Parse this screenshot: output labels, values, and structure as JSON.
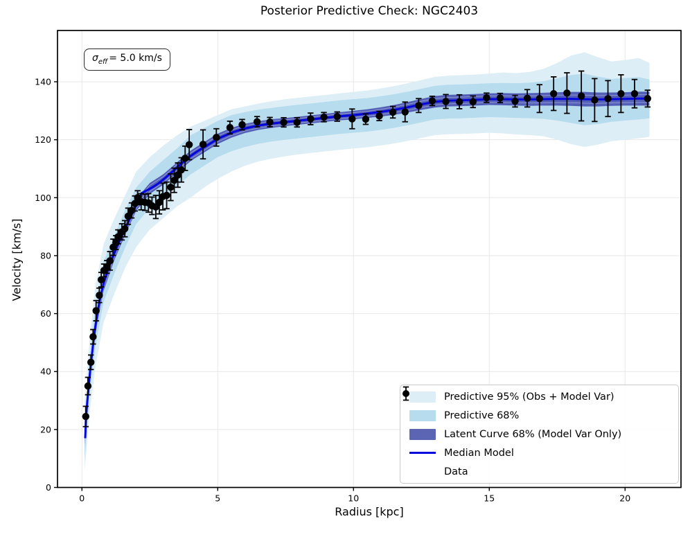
{
  "figure": {
    "title": "Posterior Predictive Check: NGC2403",
    "xlabel": "Radius [kpc]",
    "ylabel": "Velocity [km/s]"
  },
  "annotation": {
    "sigma": "σ",
    "sub": "eff",
    "rest": "= 5.0 km/s"
  },
  "colors": {
    "band95": "#ddeef6",
    "band68": "#b7dcee",
    "latent": "#4a54b2",
    "latent_legend": "#5c64b4",
    "median": "#0404dd",
    "data": "#000000",
    "grid": "#e7e7e7",
    "frame": "#000000",
    "streak": "rgba(205,213,242,0.55)"
  },
  "chart_data": {
    "type": "line",
    "title": "Posterior Predictive Check: NGC2403",
    "xlabel": "Radius [kpc]",
    "ylabel": "Velocity [km/s]",
    "xlim": [
      -0.9,
      22.06
    ],
    "ylim": [
      0,
      157.7
    ],
    "x_ticks": [
      0,
      5,
      10,
      15,
      20
    ],
    "y_ticks": [
      0,
      20,
      40,
      60,
      80,
      100,
      120,
      140
    ],
    "grid": true,
    "legend_position": "lower right",
    "legend": [
      {
        "label": "Predictive 95% (Obs + Model Var)",
        "swatch": "band95"
      },
      {
        "label": "Predictive 68%",
        "swatch": "band68"
      },
      {
        "label": "Latent Curve 68% (Model Var Only)",
        "swatch": "latent_legend"
      },
      {
        "label": "Median Model",
        "swatch": "median"
      },
      {
        "label": "Data",
        "swatch": "data"
      }
    ],
    "bands": {
      "r": [
        0.1,
        0.3,
        0.5,
        0.8,
        1.2,
        1.6,
        2.0,
        2.5,
        3.0,
        3.5,
        4.0,
        4.5,
        5.0,
        5.5,
        6.0,
        6.5,
        7.0,
        7.5,
        8.0,
        8.5,
        9.0,
        9.5,
        10.0,
        10.5,
        11.0,
        11.5,
        12.0,
        12.5,
        13.0,
        13.5,
        14.0,
        14.5,
        15.0,
        15.5,
        16.0,
        16.5,
        17.0,
        17.5,
        18.0,
        18.5,
        19.0,
        19.5,
        20.0,
        20.5,
        20.9
      ],
      "pred95_lo": [
        6,
        27,
        42,
        57,
        67,
        76,
        83,
        89,
        93,
        97,
        100,
        103.5,
        106.5,
        109,
        111,
        112.5,
        113.5,
        114.3,
        115,
        115.5,
        116,
        116.5,
        117,
        117.4,
        118,
        118.7,
        119.6,
        120.6,
        121.6,
        121.9,
        122,
        122.2,
        122.4,
        122.2,
        121.8,
        121.6,
        121.2,
        120,
        118.5,
        117.5,
        118.3,
        119.5,
        120,
        120.5,
        121
      ],
      "pred95_hi": [
        30,
        53,
        70,
        84,
        93,
        101,
        109,
        114,
        118,
        121.5,
        124.5,
        126.5,
        128.5,
        130.5,
        131.5,
        132.5,
        133.3,
        134,
        134.5,
        135,
        135.5,
        136,
        136.5,
        137,
        137.7,
        138.5,
        139.5,
        140.6,
        141.7,
        142.1,
        142.3,
        142.5,
        142.8,
        143.2,
        143,
        143.4,
        144.5,
        146.5,
        149,
        150.2,
        148.5,
        147,
        147.5,
        148.2,
        146.5
      ],
      "pred68_lo": [
        10,
        33,
        49,
        64,
        74,
        83,
        91,
        96.5,
        100,
        104,
        108,
        111,
        114,
        116,
        117.5,
        118.6,
        119.4,
        120,
        120.5,
        121,
        121.5,
        122,
        122.4,
        122.8,
        123.4,
        124.1,
        125,
        126,
        127,
        127.3,
        127.4,
        127.6,
        127.8,
        127.7,
        127.5,
        127.4,
        127.2,
        126.6,
        125.8,
        125,
        125.4,
        126.2,
        126.6,
        127,
        127.4
      ],
      "pred68_hi": [
        24,
        47,
        63,
        78,
        87,
        96,
        103.5,
        109,
        113,
        117,
        121.5,
        124,
        126.5,
        128.5,
        129.5,
        130.4,
        131,
        131.6,
        132.1,
        132.6,
        133.1,
        133.6,
        134,
        134.4,
        135,
        135.7,
        136.6,
        137.6,
        138.6,
        139,
        139.1,
        139.3,
        139.5,
        139.6,
        139.5,
        139.7,
        140.2,
        141.2,
        142.3,
        142.8,
        141.8,
        141,
        141.3,
        141.6,
        140.8
      ],
      "latent_lo": [
        14.8,
        37.4,
        53.4,
        67.9,
        78.6,
        87.3,
        95.5,
        101.3,
        104.5,
        108.6,
        112.6,
        115.6,
        118.5,
        120.7,
        122.3,
        123.4,
        124.1,
        124.7,
        125.2,
        125.7,
        126.2,
        126.7,
        127,
        127.5,
        128,
        128.6,
        129.4,
        130.3,
        131.1,
        131.5,
        131.6,
        131.8,
        132,
        131.9,
        131.8,
        131.7,
        131.8,
        131.8,
        131.7,
        131.5,
        131.5,
        131.7,
        131.8,
        131.8,
        131.8
      ],
      "latent_hi": [
        19.2,
        42.6,
        58.6,
        73.1,
        83.4,
        91.7,
        99.5,
        105.1,
        108.1,
        112.2,
        116.2,
        119.2,
        122.1,
        124.1,
        125.5,
        126.4,
        127.1,
        127.5,
        128,
        128.5,
        129,
        129.5,
        130,
        130.5,
        131.2,
        132,
        133,
        134.1,
        135.1,
        135.5,
        135.6,
        135.8,
        136,
        136.1,
        136,
        136.1,
        136.2,
        136.4,
        136.5,
        136.5,
        136.3,
        136.3,
        136.4,
        136.6,
        136.6
      ]
    },
    "median": {
      "r": [
        0.12,
        0.15,
        0.2,
        0.3,
        0.4,
        0.5,
        0.65,
        0.8,
        1.0,
        1.2,
        1.4,
        1.6,
        1.8,
        2.0,
        2.1,
        2.2,
        2.35,
        2.6,
        2.8,
        3.0,
        3.25,
        3.5,
        3.75,
        4.0,
        4.25,
        4.5,
        5.0,
        5.5,
        6.0,
        6.5,
        7.0,
        7.5,
        8.0,
        8.5,
        9.0,
        9.5,
        10.0,
        10.5,
        11.0,
        11.5,
        12.0,
        12.5,
        13.0,
        13.5,
        14.0,
        14.5,
        15.0,
        15.5,
        16.0,
        16.5,
        17.0,
        17.5,
        18.0,
        18.5,
        19.0,
        19.5,
        20.0,
        20.5,
        20.9
      ],
      "v": [
        17,
        24,
        30,
        40,
        48.5,
        56,
        64.5,
        70.5,
        76.5,
        81,
        85.5,
        89.5,
        93.5,
        97.5,
        99.8,
        101.6,
        102.3,
        103.6,
        104.8,
        106.3,
        108.3,
        110.4,
        112.5,
        114.4,
        116,
        117.4,
        120.3,
        122.4,
        123.9,
        124.9,
        125.6,
        126.1,
        126.6,
        127.1,
        127.6,
        128.1,
        128.5,
        129,
        129.6,
        130.3,
        131.2,
        132.2,
        133.1,
        133.5,
        133.6,
        133.8,
        134,
        134,
        133.9,
        133.9,
        134,
        134.1,
        134.1,
        134,
        133.9,
        134,
        134.1,
        134.2,
        134.2
      ]
    },
    "data": {
      "r": [
        0.14,
        0.22,
        0.33,
        0.41,
        0.52,
        0.64,
        0.71,
        0.81,
        0.92,
        1.03,
        1.15,
        1.25,
        1.33,
        1.47,
        1.58,
        1.7,
        1.83,
        1.95,
        2.05,
        2.18,
        2.32,
        2.45,
        2.58,
        2.72,
        2.85,
        2.98,
        3.12,
        3.27,
        3.4,
        3.53,
        3.66,
        3.8,
        3.95,
        4.46,
        4.95,
        5.45,
        5.9,
        6.45,
        6.92,
        7.43,
        7.92,
        8.42,
        8.91,
        9.4,
        9.95,
        10.45,
        10.95,
        11.45,
        11.9,
        12.4,
        12.9,
        13.4,
        13.9,
        14.4,
        14.9,
        15.4,
        15.95,
        16.4,
        16.85,
        17.37,
        17.86,
        18.39,
        18.88,
        19.37,
        19.85,
        20.35,
        20.83
      ],
      "v": [
        24.5,
        35,
        43.2,
        52,
        61,
        66.3,
        71.7,
        74.9,
        76.1,
        78.2,
        82.9,
        84.5,
        86.5,
        88.2,
        89.3,
        93.6,
        95.6,
        98,
        100,
        98.6,
        98.4,
        98.2,
        97.2,
        96.8,
        98.4,
        100.4,
        100.8,
        103.6,
        106,
        107.8,
        109.6,
        113.6,
        118.3,
        118.4,
        120.8,
        124.2,
        125.2,
        126.2,
        126.1,
        126,
        126,
        127.2,
        127.8,
        128,
        127.2,
        127.1,
        128.2,
        129.5,
        129.6,
        131.8,
        133.4,
        133.2,
        133.1,
        133.1,
        134.5,
        134.4,
        133.3,
        134.3,
        134.2,
        135.9,
        136.1,
        135.1,
        133.7,
        134.2,
        135.9,
        135.9,
        134.2
      ],
      "err": [
        3.5,
        3,
        2.5,
        2.5,
        3.5,
        2.5,
        2.5,
        2.2,
        2.2,
        3.2,
        2.8,
        2.4,
        2.4,
        2.8,
        2.8,
        2.8,
        2.6,
        2.6,
        2.4,
        2.8,
        2.8,
        3.2,
        3,
        4,
        4,
        4.6,
        4.6,
        4.6,
        4.2,
        4.2,
        4.2,
        4.2,
        5.2,
        5,
        3,
        2.2,
        1.8,
        1.8,
        1.6,
        1.6,
        1.6,
        2,
        1.6,
        1.6,
        3.4,
        1.8,
        1.6,
        2,
        3.4,
        2.4,
        1.6,
        2.4,
        2.4,
        2,
        1.6,
        1.6,
        2,
        3,
        4.8,
        5.8,
        7,
        8.6,
        7.4,
        6.2,
        6.5,
        4.9,
        2.9
      ]
    }
  }
}
